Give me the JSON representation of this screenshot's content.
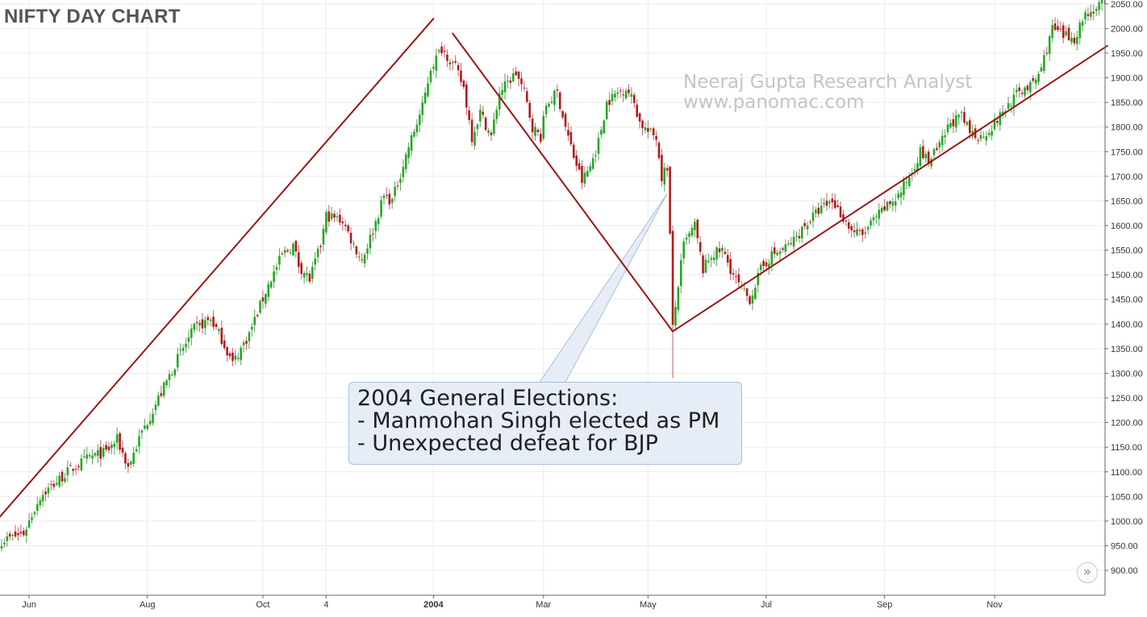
{
  "page": {
    "title": "NIFTY DAY CHART",
    "watermark": [
      "Neeraj Gupta Research Analyst",
      "www.panomac.com"
    ],
    "callout": [
      "2004 General Elections:",
      "- Manmohan Singh elected as PM",
      "- Unexpected defeat for BJP"
    ],
    "scroll_icon": "double-chevron-right-icon",
    "scroll_glyph": "»"
  },
  "chart_data": {
    "type": "candlestick",
    "title": "NIFTY DAY CHART",
    "xlabel": "",
    "ylabel": "",
    "ylim": [
      870,
      2060
    ],
    "y_ticks": [
      900,
      950,
      1000,
      1050,
      1100,
      1150,
      1200,
      1250,
      1300,
      1350,
      1400,
      1450,
      1500,
      1550,
      1600,
      1650,
      1700,
      1750,
      1800,
      1850,
      1900,
      1950,
      2000,
      2050
    ],
    "y_tick_labels": [
      "900.00",
      "950.00",
      "1000.00",
      "1050.00",
      "1100.00",
      "1150.00",
      "1200.00",
      "1250.00",
      "1300.00",
      "1350.00",
      "1400.00",
      "1450.00",
      "1500.00",
      "1550.00",
      "1600.00",
      "1650.00",
      "1700.00",
      "1750.00",
      "1800.00",
      "1850.00",
      "1900.00",
      "1950.00",
      "2000.00",
      "2050.00"
    ],
    "x_ticks": [
      {
        "label": "Jun",
        "bold": false,
        "bar": 10
      },
      {
        "label": "Aug",
        "bold": false,
        "bar": 53
      },
      {
        "label": "Oct",
        "bold": false,
        "bar": 95
      },
      {
        "label": "4",
        "bold": false,
        "bar": 118
      },
      {
        "label": "2004",
        "bold": true,
        "bar": 157
      },
      {
        "label": "Mar",
        "bold": false,
        "bar": 197
      },
      {
        "label": "May",
        "bold": false,
        "bar": 235
      },
      {
        "label": "Jul",
        "bold": false,
        "bar": 278
      },
      {
        "label": "Sep",
        "bold": false,
        "bar": 321
      },
      {
        "label": "Nov",
        "bold": false,
        "bar": 361
      }
    ],
    "bars_total": 402,
    "colors": {
      "up": "#22aa22",
      "down": "#b31a1a",
      "wick_up": "#5aa05a",
      "wick_down": "#c06070",
      "trendline": "#9b1515",
      "grid": "#ebebeb",
      "axis": "#666666"
    },
    "anchors": [
      [
        0,
        960
      ],
      [
        8,
        975
      ],
      [
        14,
        1050
      ],
      [
        24,
        1100
      ],
      [
        32,
        1130
      ],
      [
        38,
        1140
      ],
      [
        42,
        1165
      ],
      [
        46,
        1110
      ],
      [
        51,
        1180
      ],
      [
        58,
        1260
      ],
      [
        64,
        1330
      ],
      [
        70,
        1390
      ],
      [
        76,
        1410
      ],
      [
        80,
        1370
      ],
      [
        84,
        1320
      ],
      [
        90,
        1380
      ],
      [
        97,
        1480
      ],
      [
        102,
        1540
      ],
      [
        106,
        1560
      ],
      [
        108,
        1520
      ],
      [
        112,
        1490
      ],
      [
        116,
        1560
      ],
      [
        118,
        1620
      ],
      [
        124,
        1610
      ],
      [
        128,
        1560
      ],
      [
        131,
        1530
      ],
      [
        135,
        1590
      ],
      [
        139,
        1660
      ],
      [
        142,
        1650
      ],
      [
        148,
        1760
      ],
      [
        153,
        1840
      ],
      [
        156,
        1920
      ],
      [
        160,
        1960
      ],
      [
        162,
        1945
      ],
      [
        165,
        1920
      ],
      [
        168,
        1880
      ],
      [
        171,
        1780
      ],
      [
        174,
        1830
      ],
      [
        178,
        1780
      ],
      [
        181,
        1870
      ],
      [
        184,
        1890
      ],
      [
        187,
        1910
      ],
      [
        190,
        1870
      ],
      [
        193,
        1800
      ],
      [
        196,
        1780
      ],
      [
        198,
        1845
      ],
      [
        202,
        1870
      ],
      [
        205,
        1800
      ],
      [
        208,
        1740
      ],
      [
        211,
        1690
      ],
      [
        214,
        1720
      ],
      [
        217,
        1770
      ],
      [
        220,
        1850
      ],
      [
        224,
        1870
      ],
      [
        227,
        1880
      ],
      [
        230,
        1850
      ],
      [
        232,
        1810
      ],
      [
        235,
        1790
      ],
      [
        238,
        1780
      ],
      [
        240,
        1700
      ],
      [
        242,
        1720
      ],
      [
        243,
        1580
      ],
      [
        244,
        1390
      ],
      [
        246,
        1480
      ],
      [
        248,
        1560
      ],
      [
        252,
        1600
      ],
      [
        255,
        1510
      ],
      [
        258,
        1540
      ],
      [
        262,
        1550
      ],
      [
        266,
        1500
      ],
      [
        269,
        1470
      ],
      [
        272,
        1450
      ],
      [
        276,
        1510
      ],
      [
        280,
        1540
      ],
      [
        284,
        1550
      ],
      [
        288,
        1570
      ],
      [
        292,
        1600
      ],
      [
        297,
        1630
      ],
      [
        302,
        1650
      ],
      [
        305,
        1625
      ],
      [
        309,
        1590
      ],
      [
        313,
        1580
      ],
      [
        317,
        1610
      ],
      [
        322,
        1640
      ],
      [
        326,
        1660
      ],
      [
        330,
        1700
      ],
      [
        334,
        1750
      ],
      [
        337,
        1730
      ],
      [
        341,
        1760
      ],
      [
        345,
        1810
      ],
      [
        349,
        1820
      ],
      [
        352,
        1790
      ],
      [
        356,
        1780
      ],
      [
        360,
        1800
      ],
      [
        364,
        1830
      ],
      [
        368,
        1860
      ],
      [
        372,
        1880
      ],
      [
        375,
        1885
      ],
      [
        378,
        1920
      ],
      [
        382,
        2000
      ],
      [
        386,
        1985
      ],
      [
        390,
        1980
      ],
      [
        394,
        2030
      ],
      [
        398,
        2040
      ],
      [
        401,
        2058
      ]
    ],
    "candle_seed": 7,
    "trendlines": [
      {
        "x1": -2,
        "y1": 1000,
        "x2": 157,
        "y2": 2020
      },
      {
        "x1": 164,
        "y1": 1990,
        "x2": 244,
        "y2": 1385
      },
      {
        "x1": 244,
        "y1": 1385,
        "x2": 402,
        "y2": 1965
      }
    ],
    "callout_pointer": {
      "x": 242,
      "y": 1665
    },
    "annotations": [
      "2004 General Elections:",
      "- Manmohan Singh elected as PM",
      "- Unexpected defeat for BJP"
    ]
  }
}
